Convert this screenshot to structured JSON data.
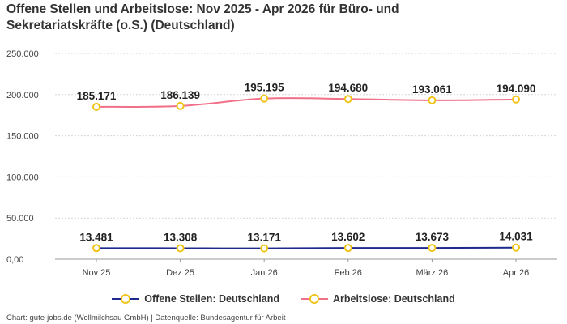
{
  "title": "Offene Stellen und Arbeitslose: Nov 2025 - Apr 2026 für Büro- und\nSekretariatskräfte (o.S.) (Deutschland)",
  "footer": "Chart: gute-jobs.de (Wollmilchsau GmbH) | Datenquelle: Bundesagentur für Arbeit",
  "chart_data": {
    "type": "line",
    "title": "Offene Stellen und Arbeitslose: Nov 2025 - Apr 2026 für Büro- und Sekretariatskräfte (o.S.) (Deutschland)",
    "categories": [
      "Nov 25",
      "Dez 25",
      "Jan 26",
      "Feb 26",
      "März 26",
      "Apr 26"
    ],
    "yticks": [
      "0,00",
      "50.000",
      "100.000",
      "150.000",
      "200.000",
      "250.000"
    ],
    "ylim": [
      0,
      250000
    ],
    "grid": true,
    "legend_position": "bottom",
    "marker_color": "#f0c419",
    "series": [
      {
        "name": "Offene Stellen: Deutschland",
        "color": "#1f2a8c",
        "values": [
          13481,
          13308,
          13171,
          13602,
          13673,
          14031
        ],
        "labels": [
          "13.481",
          "13.308",
          "13.171",
          "13.602",
          "13.673",
          "14.031"
        ]
      },
      {
        "name": "Arbeitslose: Deutschland",
        "color": "#f0708a",
        "values": [
          185171,
          186139,
          195195,
          194680,
          193061,
          194090
        ],
        "labels": [
          "185.171",
          "186.139",
          "195.195",
          "194.680",
          "193.061",
          "194.090"
        ]
      }
    ]
  }
}
